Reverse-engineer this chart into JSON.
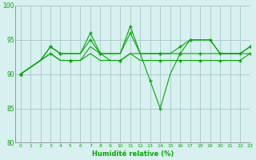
{
  "lines": [
    {
      "x": [
        0,
        1,
        2,
        3,
        4,
        5,
        6,
        7,
        8,
        9,
        10,
        11,
        12,
        13,
        14,
        15,
        16,
        17,
        18,
        19,
        20,
        21,
        22,
        23
      ],
      "y": [
        90,
        91,
        92,
        94,
        93,
        93,
        93,
        96,
        93,
        93,
        93,
        97,
        93,
        89,
        85,
        90,
        93,
        95,
        95,
        95,
        93,
        93,
        93,
        94
      ]
    },
    {
      "x": [
        0,
        1,
        2,
        3,
        4,
        5,
        6,
        7,
        8,
        9,
        10,
        11,
        12,
        13,
        14,
        15,
        16,
        17,
        18,
        19,
        20,
        21,
        22,
        23
      ],
      "y": [
        90,
        91,
        92,
        94,
        93,
        93,
        93,
        95,
        93,
        93,
        93,
        96,
        93,
        93,
        93,
        93,
        94,
        95,
        95,
        95,
        93,
        93,
        93,
        94
      ]
    },
    {
      "x": [
        0,
        1,
        2,
        3,
        4,
        5,
        6,
        7,
        8,
        9,
        10,
        11,
        12,
        13,
        14,
        15,
        16,
        17,
        18,
        19,
        20,
        21,
        22,
        23
      ],
      "y": [
        90,
        91,
        92,
        93,
        92,
        92,
        92,
        94,
        93,
        92,
        92,
        93,
        93,
        93,
        93,
        93,
        93,
        93,
        93,
        93,
        93,
        93,
        93,
        93
      ]
    },
    {
      "x": [
        0,
        1,
        2,
        3,
        4,
        5,
        6,
        7,
        8,
        9,
        10,
        11,
        12,
        13,
        14,
        15,
        16,
        17,
        18,
        19,
        20,
        21,
        22,
        23
      ],
      "y": [
        90,
        91,
        92,
        93,
        92,
        92,
        92,
        93,
        92,
        92,
        92,
        93,
        92,
        92,
        92,
        92,
        92,
        92,
        92,
        92,
        92,
        92,
        92,
        93
      ]
    }
  ],
  "markers": [
    {
      "x": [
        0,
        3,
        4,
        7,
        8,
        11,
        13,
        14,
        16,
        17,
        19,
        23
      ],
      "y": [
        90,
        94,
        93,
        96,
        93,
        97,
        89,
        85,
        93,
        95,
        95,
        94
      ]
    },
    {
      "x": [
        0,
        3,
        4,
        7,
        8,
        11,
        14,
        16,
        17,
        19,
        23
      ],
      "y": [
        90,
        94,
        93,
        95,
        93,
        96,
        93,
        94,
        95,
        95,
        94
      ]
    },
    {
      "x": [
        0,
        3,
        5,
        10,
        14,
        16,
        18,
        20,
        22
      ],
      "y": [
        90,
        93,
        92,
        92,
        93,
        93,
        93,
        93,
        93
      ]
    },
    {
      "x": [
        0,
        5,
        10,
        14,
        16,
        18,
        20,
        22,
        23
      ],
      "y": [
        90,
        92,
        92,
        92,
        92,
        92,
        92,
        92,
        93
      ]
    }
  ],
  "line_color": "#00aa00",
  "bg_color": "#d8f0f0",
  "grid_color": "#aacccc",
  "ylim": [
    80,
    100
  ],
  "xlim": [
    -0.5,
    23
  ],
  "xlabel": "Humidité relative (%)",
  "yticks": [
    80,
    85,
    90,
    95,
    100
  ],
  "xticks": [
    0,
    1,
    2,
    3,
    4,
    5,
    6,
    7,
    8,
    9,
    10,
    11,
    12,
    13,
    14,
    15,
    16,
    17,
    18,
    19,
    20,
    21,
    22,
    23
  ]
}
